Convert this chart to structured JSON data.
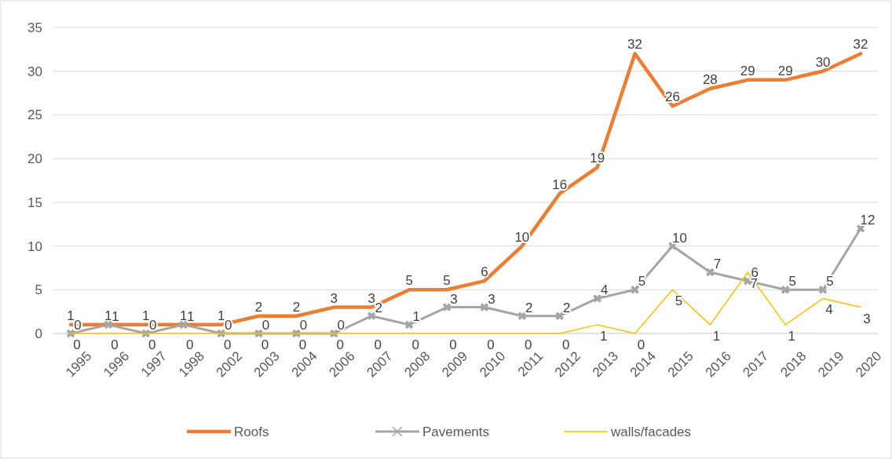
{
  "chart_data": {
    "type": "line",
    "categories": [
      "1995",
      "1996",
      "1997",
      "1998",
      "2002",
      "2003",
      "2004",
      "2006",
      "2007",
      "2008",
      "2009",
      "2010",
      "2011",
      "2012",
      "2013",
      "2014",
      "2015",
      "2016",
      "2017",
      "2018",
      "2019",
      "2020"
    ],
    "series": [
      {
        "name": "Roofs",
        "color": "#ed7d31",
        "marker": "none",
        "values": [
          1,
          1,
          1,
          1,
          1,
          2,
          2,
          3,
          3,
          5,
          5,
          6,
          10,
          16,
          19,
          32,
          26,
          28,
          29,
          29,
          30,
          32
        ]
      },
      {
        "name": "Pavements",
        "color": "#a5a5a5",
        "marker": "cross",
        "values": [
          0,
          1,
          0,
          1,
          0,
          0,
          0,
          0,
          2,
          1,
          3,
          3,
          2,
          2,
          4,
          5,
          10,
          7,
          6,
          5,
          5,
          12
        ]
      },
      {
        "name": "walls/facades",
        "color": "#ffc000",
        "marker": "none",
        "values": [
          0,
          0,
          0,
          0,
          0,
          0,
          0,
          0,
          0,
          0,
          0,
          0,
          0,
          0,
          1,
          0,
          5,
          1,
          7,
          1,
          4,
          3
        ]
      }
    ],
    "ylim": [
      0,
      35
    ],
    "yticks": [
      0,
      5,
      10,
      15,
      20,
      25,
      30,
      35
    ],
    "grid": "y",
    "legend": "bottom",
    "data_labels": true
  }
}
